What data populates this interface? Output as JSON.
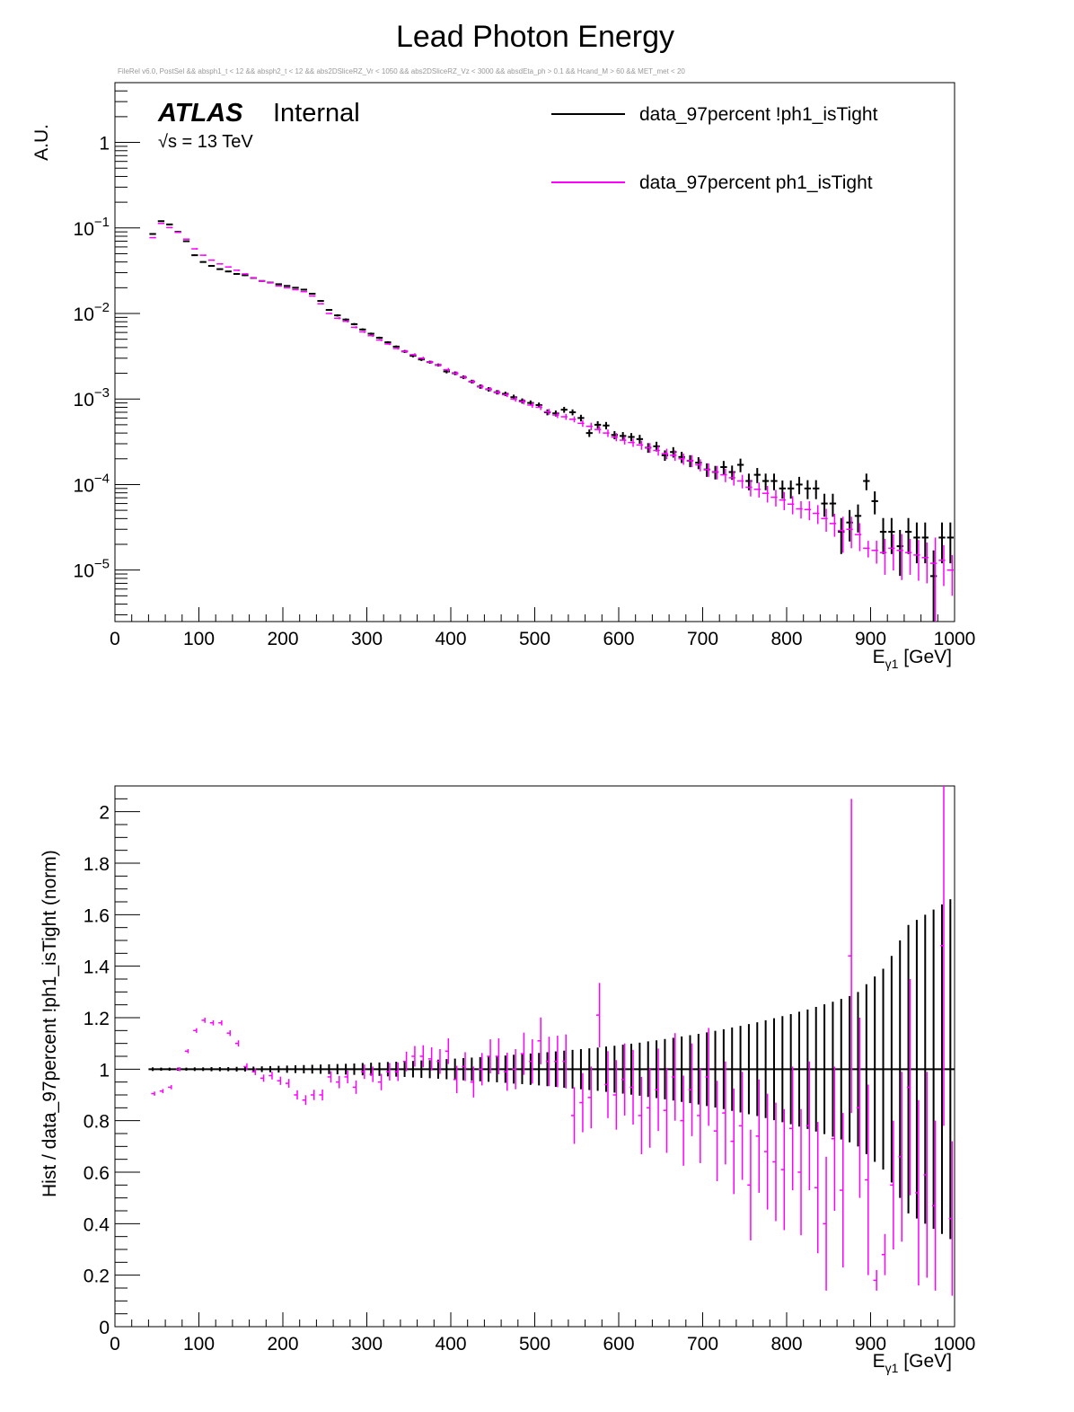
{
  "title": "Lead Photon Energy",
  "cut_string": "FileRel v6.0, PostSel &&  absph1_t < 12 && absph2_t < 12 && abs2DSliceRZ_Vr < 1050 && abs2DSliceRZ_Vz < 3000 && absdEta_ph > 0.1 && Hcand_M > 60 && MET_met < 20",
  "atlas_label": "ATLAS",
  "internal_label": "Internal",
  "energy_label": "√s = 13 TeV",
  "colors": {
    "data_nontight": "#000000",
    "data_tight": "#ff00ff"
  },
  "chart_data": [
    {
      "type": "scatter",
      "yscale": "log",
      "ylabel": "A.U.",
      "xlabel_main": "E",
      "xlabel_sub": "γ1",
      "xlabel_unit": " [GeV]",
      "xlim": [
        0,
        1000
      ],
      "ylim": [
        2.5e-06,
        5
      ],
      "x_tick_labels": [
        "0",
        "100",
        "200",
        "300",
        "400",
        "500",
        "600",
        "700",
        "800",
        "900",
        "1000"
      ],
      "y_tick_labels": [
        {
          "base": "1",
          "exp": ""
        },
        {
          "base": "10",
          "exp": "−1"
        },
        {
          "base": "10",
          "exp": "−2"
        },
        {
          "base": "10",
          "exp": "−3"
        },
        {
          "base": "10",
          "exp": "−4"
        },
        {
          "base": "10",
          "exp": "−5"
        }
      ],
      "legend": {
        "placement": "top-right",
        "entries": [
          "data_97percent !ph1_isTight",
          "data_97percent ph1_isTight"
        ]
      },
      "bin_width": 10,
      "x": [
        45,
        55,
        65,
        75,
        85,
        95,
        105,
        115,
        125,
        135,
        145,
        155,
        165,
        175,
        185,
        195,
        205,
        215,
        225,
        235,
        245,
        255,
        265,
        275,
        285,
        295,
        305,
        315,
        325,
        335,
        345,
        355,
        365,
        375,
        385,
        395,
        405,
        415,
        425,
        435,
        445,
        455,
        465,
        475,
        485,
        495,
        505,
        515,
        525,
        535,
        545,
        555,
        565,
        575,
        585,
        595,
        605,
        615,
        625,
        635,
        645,
        655,
        665,
        675,
        685,
        695,
        705,
        715,
        725,
        735,
        745,
        755,
        765,
        775,
        785,
        795,
        805,
        815,
        825,
        835,
        845,
        855,
        865,
        875,
        885,
        895,
        905,
        915,
        925,
        935,
        945,
        955,
        965,
        975,
        985,
        995
      ],
      "series": [
        {
          "name": "data_97percent !ph1_isTight",
          "values": [
            0.085,
            0.12,
            0.11,
            0.09,
            0.07,
            0.048,
            0.04,
            0.036,
            0.033,
            0.031,
            0.029,
            0.028,
            0.026,
            0.024,
            0.023,
            0.022,
            0.021,
            0.02,
            0.019,
            0.017,
            0.014,
            0.011,
            0.0095,
            0.0085,
            0.0075,
            0.0065,
            0.0058,
            0.0052,
            0.0046,
            0.0041,
            0.0036,
            0.0032,
            0.0029,
            0.0027,
            0.0025,
            0.0021,
            0.002,
            0.0018,
            0.0016,
            0.0014,
            0.0013,
            0.0012,
            0.00115,
            0.00105,
            0.00095,
            0.0009,
            0.00085,
            0.0007,
            0.00068,
            0.00075,
            0.0007,
            0.0006,
            0.0004,
            0.0005,
            0.00049,
            0.00038,
            0.00037,
            0.00036,
            0.00034,
            0.00027,
            0.00028,
            0.00022,
            0.00024,
            0.00021,
            0.00019,
            0.00018,
            0.00015,
            0.00014,
            0.00016,
            0.00014,
            0.00017,
            0.00011,
            0.00013,
            0.00011,
            0.00011,
            9e-05,
            9e-05,
            0.0001,
            9e-05,
            9e-05,
            6e-05,
            6e-05,
            2.8e-05,
            3.6e-05,
            4.3e-05,
            0.00011,
            6.4e-05,
            2.8e-05,
            2.8e-05,
            1.9e-05,
            2.8e-05,
            2.4e-05,
            2.4e-05,
            8.5e-06,
            2.4e-05,
            2.4e-05
          ],
          "rel_err": [
            0.02,
            0.02,
            0.02,
            0.02,
            0.02,
            0.02,
            0.02,
            0.02,
            0.02,
            0.02,
            0.02,
            0.02,
            0.02,
            0.02,
            0.02,
            0.02,
            0.02,
            0.02,
            0.02,
            0.02,
            0.02,
            0.02,
            0.03,
            0.03,
            0.03,
            0.03,
            0.03,
            0.03,
            0.03,
            0.03,
            0.04,
            0.04,
            0.04,
            0.04,
            0.04,
            0.05,
            0.05,
            0.05,
            0.05,
            0.06,
            0.06,
            0.06,
            0.06,
            0.07,
            0.07,
            0.07,
            0.07,
            0.08,
            0.08,
            0.08,
            0.08,
            0.09,
            0.1,
            0.1,
            0.1,
            0.11,
            0.11,
            0.11,
            0.12,
            0.13,
            0.13,
            0.14,
            0.14,
            0.15,
            0.16,
            0.16,
            0.18,
            0.18,
            0.18,
            0.19,
            0.18,
            0.22,
            0.2,
            0.22,
            0.22,
            0.24,
            0.24,
            0.23,
            0.25,
            0.25,
            0.3,
            0.3,
            0.45,
            0.4,
            0.36,
            0.22,
            0.3,
            0.45,
            0.45,
            0.55,
            0.45,
            0.5,
            0.5,
            1.0,
            0.5,
            0.5
          ]
        },
        {
          "name": "data_97percent ph1_isTight",
          "values": [
            0.077,
            0.113,
            0.101,
            0.089,
            0.074,
            0.057,
            0.048,
            0.042,
            0.038,
            0.035,
            0.032,
            0.029,
            0.026,
            0.024,
            0.023,
            0.021,
            0.02,
            0.019,
            0.018,
            0.016,
            0.013,
            0.01,
            0.0088,
            0.0081,
            0.0069,
            0.0061,
            0.0055,
            0.0049,
            0.0044,
            0.0039,
            0.0036,
            0.0033,
            0.003,
            0.0027,
            0.0025,
            0.0022,
            0.002,
            0.0018,
            0.0016,
            0.0014,
            0.0013,
            0.0012,
            0.00112,
            0.001,
            0.00093,
            0.00085,
            0.0008,
            0.00071,
            0.00065,
            0.00062,
            0.00058,
            0.00052,
            0.00048,
            0.00044,
            0.0004,
            0.00036,
            0.00033,
            0.00031,
            0.00029,
            0.00027,
            0.00025,
            0.00023,
            0.00022,
            0.0002,
            0.00019,
            0.00017,
            0.00015,
            0.00014,
            0.00013,
            0.00012,
            0.00011,
            9.3e-05,
            8.8e-05,
            7.9e-05,
            7.1e-05,
            6.6e-05,
            5.9e-05,
            5.2e-05,
            5.1e-05,
            4.6e-05,
            4e-05,
            3.5e-05,
            2.9e-05,
            3e-05,
            2.6e-05,
            1.8e-05,
            1.7e-05,
            1.6e-05,
            1.8e-05,
            1.7e-05,
            1.6e-05,
            1.5e-05,
            1.4e-05,
            1.2e-05,
            1.3e-05,
            1e-05
          ],
          "rel_err": [
            0.02,
            0.02,
            0.02,
            0.02,
            0.02,
            0.02,
            0.02,
            0.02,
            0.02,
            0.02,
            0.02,
            0.02,
            0.02,
            0.02,
            0.02,
            0.02,
            0.02,
            0.02,
            0.02,
            0.02,
            0.02,
            0.02,
            0.03,
            0.03,
            0.03,
            0.03,
            0.03,
            0.03,
            0.03,
            0.03,
            0.04,
            0.04,
            0.04,
            0.04,
            0.04,
            0.05,
            0.05,
            0.05,
            0.05,
            0.06,
            0.06,
            0.06,
            0.06,
            0.07,
            0.07,
            0.07,
            0.07,
            0.08,
            0.08,
            0.08,
            0.08,
            0.09,
            0.1,
            0.1,
            0.1,
            0.11,
            0.11,
            0.11,
            0.12,
            0.13,
            0.13,
            0.14,
            0.14,
            0.15,
            0.16,
            0.16,
            0.18,
            0.18,
            0.18,
            0.19,
            0.18,
            0.22,
            0.2,
            0.22,
            0.22,
            0.24,
            0.24,
            0.23,
            0.25,
            0.25,
            0.3,
            0.3,
            0.45,
            0.4,
            0.36,
            0.22,
            0.3,
            0.45,
            0.45,
            0.55,
            0.45,
            0.5,
            0.5,
            1.0,
            0.5,
            0.5
          ]
        }
      ]
    },
    {
      "type": "scatter",
      "ylabel": "Hist / data_97percent !ph1_isTight (norm)",
      "xlabel_main": "E",
      "xlabel_sub": "γ1",
      "xlabel_unit": " [GeV]",
      "xlim": [
        0,
        1000
      ],
      "ylim": [
        0,
        2.1
      ],
      "x_tick_labels": [
        "0",
        "100",
        "200",
        "300",
        "400",
        "500",
        "600",
        "700",
        "800",
        "900",
        "1000"
      ],
      "y_tick_labels": [
        "0",
        "0.2",
        "0.4",
        "0.6",
        "0.8",
        "1",
        "1.2",
        "1.4",
        "1.6",
        "1.8",
        "2"
      ],
      "bin_width": 10,
      "x": [
        45,
        55,
        65,
        75,
        85,
        95,
        105,
        115,
        125,
        135,
        145,
        155,
        165,
        175,
        185,
        195,
        205,
        215,
        225,
        235,
        245,
        255,
        265,
        275,
        285,
        295,
        305,
        315,
        325,
        335,
        345,
        355,
        365,
        375,
        385,
        395,
        405,
        415,
        425,
        435,
        445,
        455,
        465,
        475,
        485,
        495,
        505,
        515,
        525,
        535,
        545,
        555,
        565,
        575,
        585,
        595,
        605,
        615,
        625,
        635,
        645,
        655,
        665,
        675,
        685,
        695,
        705,
        715,
        725,
        735,
        745,
        755,
        765,
        775,
        785,
        795,
        805,
        815,
        825,
        835,
        845,
        855,
        865,
        875,
        885,
        895,
        905,
        915,
        925,
        935,
        945,
        955,
        965,
        975,
        985,
        995
      ],
      "series": [
        {
          "name": "data_97percent !ph1_isTight",
          "values": [
            1,
            1,
            1,
            1,
            1,
            1,
            1,
            1,
            1,
            1,
            1,
            1,
            1,
            1,
            1,
            1,
            1,
            1,
            1,
            1,
            1,
            1,
            1,
            1,
            1,
            1,
            1,
            1,
            1,
            1,
            1,
            1,
            1,
            1,
            1,
            1,
            1,
            1,
            1,
            1,
            1,
            1,
            1,
            1,
            1,
            1,
            1,
            1,
            1,
            1,
            1,
            1,
            1,
            1,
            1,
            1,
            1,
            1,
            1,
            1,
            1,
            1,
            1,
            1,
            1,
            1,
            1,
            1,
            1,
            1,
            1,
            1,
            1,
            1,
            1,
            1,
            1,
            1,
            1,
            1,
            1,
            1,
            1,
            1,
            1,
            1,
            1,
            1,
            1,
            1,
            1,
            1,
            1,
            1,
            1,
            1
          ],
          "err": [
            0.007,
            0.006,
            0.006,
            0.006,
            0.006,
            0.007,
            0.007,
            0.008,
            0.008,
            0.008,
            0.009,
            0.009,
            0.01,
            0.011,
            0.012,
            0.013,
            0.014,
            0.015,
            0.016,
            0.017,
            0.018,
            0.019,
            0.02,
            0.021,
            0.022,
            0.024,
            0.025,
            0.026,
            0.028,
            0.029,
            0.03,
            0.032,
            0.034,
            0.035,
            0.037,
            0.039,
            0.041,
            0.043,
            0.045,
            0.047,
            0.049,
            0.051,
            0.053,
            0.056,
            0.058,
            0.061,
            0.063,
            0.066,
            0.069,
            0.072,
            0.075,
            0.078,
            0.081,
            0.084,
            0.088,
            0.091,
            0.095,
            0.099,
            0.103,
            0.108,
            0.112,
            0.117,
            0.122,
            0.127,
            0.132,
            0.137,
            0.143,
            0.149,
            0.155,
            0.162,
            0.168,
            0.175,
            0.182,
            0.19,
            0.198,
            0.206,
            0.214,
            0.223,
            0.232,
            0.242,
            0.252,
            0.262,
            0.273,
            0.284,
            0.3,
            0.33,
            0.36,
            0.39,
            0.44,
            0.5,
            0.56,
            0.58,
            0.6,
            0.62,
            0.64,
            0.66
          ]
        },
        {
          "name": "data_97percent ph1_isTight",
          "values": [
            0.905,
            0.915,
            0.93,
            1.0,
            1.07,
            1.15,
            1.19,
            1.18,
            1.18,
            1.14,
            1.1,
            1.01,
            0.99,
            0.965,
            0.975,
            0.955,
            0.945,
            0.9,
            0.88,
            0.9,
            0.9,
            0.97,
            0.95,
            0.97,
            0.93,
            0.99,
            0.98,
            0.95,
            0.99,
            0.99,
            1.03,
            1.05,
            1.05,
            1.04,
            1.03,
            1.07,
            0.96,
            1.01,
            0.95,
            1.0,
            1.05,
            1.05,
            0.99,
            1.0,
            1.06,
            1.03,
            1.11,
            1.03,
            1.03,
            1.03,
            0.82,
            0.87,
            0.89,
            1.21,
            0.94,
            0.9,
            0.96,
            0.93,
            0.82,
            0.85,
            0.92,
            0.84,
            0.97,
            0.8,
            0.92,
            0.82,
            0.97,
            0.76,
            0.83,
            0.72,
            0.78,
            0.55,
            0.74,
            0.68,
            0.64,
            0.61,
            0.77,
            0.6,
            0.78,
            0.54,
            0.4,
            0.73,
            0.53,
            1.44,
            0.85,
            0.57,
            0.18,
            0.28,
            0.55,
            0.66,
            0.93,
            0.52,
            0.59,
            0.47,
            1.48,
            0.42
          ],
          "err": [
            0.008,
            0.008,
            0.008,
            0.008,
            0.008,
            0.009,
            0.01,
            0.01,
            0.01,
            0.011,
            0.012,
            0.013,
            0.013,
            0.014,
            0.015,
            0.016,
            0.017,
            0.018,
            0.019,
            0.02,
            0.021,
            0.022,
            0.024,
            0.025,
            0.026,
            0.028,
            0.03,
            0.032,
            0.034,
            0.036,
            0.038,
            0.04,
            0.043,
            0.045,
            0.048,
            0.05,
            0.053,
            0.056,
            0.06,
            0.063,
            0.066,
            0.07,
            0.074,
            0.078,
            0.082,
            0.086,
            0.091,
            0.096,
            0.1,
            0.105,
            0.11,
            0.115,
            0.12,
            0.125,
            0.13,
            0.135,
            0.14,
            0.145,
            0.15,
            0.155,
            0.16,
            0.165,
            0.17,
            0.175,
            0.18,
            0.185,
            0.19,
            0.195,
            0.2,
            0.205,
            0.21,
            0.215,
            0.22,
            0.225,
            0.23,
            0.235,
            0.24,
            0.245,
            0.25,
            0.255,
            0.26,
            0.28,
            0.3,
            0.61,
            0.35,
            0.37,
            0.04,
            0.08,
            0.25,
            0.33,
            0.42,
            0.36,
            0.4,
            0.33,
            0.7,
            0.3
          ]
        }
      ]
    }
  ]
}
